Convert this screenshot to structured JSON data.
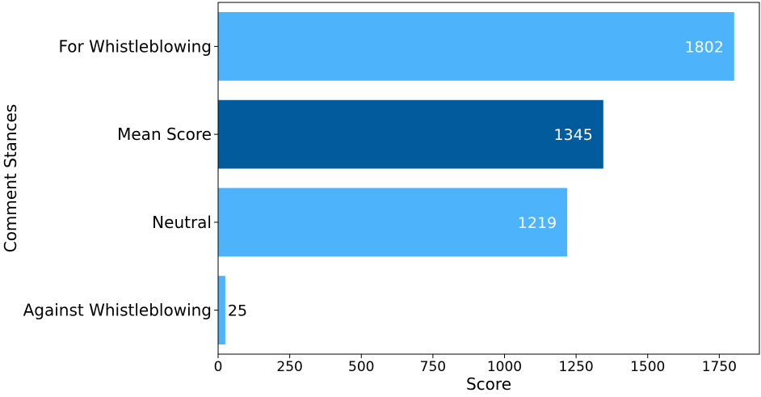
{
  "chart_data": {
    "type": "bar",
    "orientation": "horizontal",
    "categories": [
      "For Whistleblowing",
      "Mean Score",
      "Neutral",
      "Against Whistleblowing"
    ],
    "values": [
      1802,
      1345,
      1219,
      25
    ],
    "highlight": "Mean Score",
    "xlabel": "Score",
    "ylabel": "Comment Stances",
    "xlim": [
      0,
      1890
    ],
    "xticks": [
      0,
      250,
      500,
      750,
      1000,
      1250,
      1500,
      1750
    ],
    "grid": false,
    "colors": {
      "bar": "#4db3fb",
      "highlight": "#015b9c",
      "label_inside": "#ffffff",
      "label_outside": "#000000"
    }
  }
}
